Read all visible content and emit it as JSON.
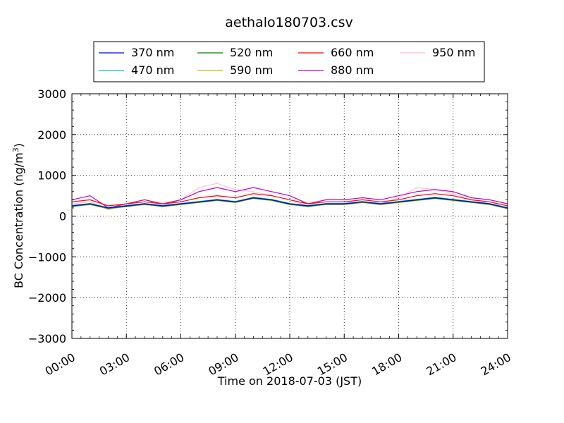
{
  "chart_data": {
    "type": "line",
    "title": "aethalo180703.csv",
    "xlabel": "Time on 2018-07-03 (JST)",
    "ylabel": "BC Concentration (ng/m³)",
    "ylabel_main": "BC Concentration (ng/m",
    "ylabel_sup": "3",
    "ylabel_tail": ")",
    "xlim": [
      "00:00",
      "24:00"
    ],
    "ylim": [
      -3000,
      3000
    ],
    "x_ticks": [
      "00:00",
      "03:00",
      "06:00",
      "09:00",
      "12:00",
      "15:00",
      "18:00",
      "21:00",
      "24:00"
    ],
    "y_ticks": [
      "3000",
      "2000",
      "1000",
      "0",
      "−1000",
      "−2000",
      "−3000"
    ],
    "grid": true,
    "legend_position": "top-center",
    "series": [
      {
        "name": "370 nm",
        "color": "#0000ff",
        "x": [
          "00:00",
          "01:00",
          "02:00",
          "03:00",
          "04:00",
          "05:00",
          "06:00",
          "07:00",
          "08:00",
          "09:00",
          "10:00",
          "11:00",
          "12:00",
          "13:00",
          "14:00",
          "15:00",
          "16:00",
          "17:00",
          "18:00",
          "19:00",
          "20:00",
          "21:00",
          "22:00",
          "23:00",
          "24:00"
        ],
        "values": [
          250,
          300,
          200,
          250,
          300,
          250,
          300,
          350,
          400,
          350,
          450,
          400,
          300,
          250,
          300,
          300,
          350,
          300,
          350,
          400,
          450,
          400,
          350,
          300,
          200
        ]
      },
      {
        "name": "470 nm",
        "color": "#00bfbf",
        "x": [
          "00:00",
          "01:00",
          "02:00",
          "03:00",
          "04:00",
          "05:00",
          "06:00",
          "07:00",
          "08:00",
          "09:00",
          "10:00",
          "11:00",
          "12:00",
          "13:00",
          "14:00",
          "15:00",
          "16:00",
          "17:00",
          "18:00",
          "19:00",
          "20:00",
          "21:00",
          "22:00",
          "23:00",
          "24:00"
        ],
        "values": [
          260,
          310,
          210,
          260,
          310,
          260,
          310,
          360,
          410,
          360,
          460,
          410,
          310,
          260,
          310,
          310,
          360,
          310,
          360,
          410,
          460,
          410,
          360,
          310,
          210
        ]
      },
      {
        "name": "520 nm",
        "color": "#008000",
        "x": [
          "00:00",
          "01:00",
          "02:00",
          "03:00",
          "04:00",
          "05:00",
          "06:00",
          "07:00",
          "08:00",
          "09:00",
          "10:00",
          "11:00",
          "12:00",
          "13:00",
          "14:00",
          "15:00",
          "16:00",
          "17:00",
          "18:00",
          "19:00",
          "20:00",
          "21:00",
          "22:00",
          "23:00",
          "24:00"
        ],
        "values": [
          240,
          290,
          190,
          240,
          290,
          240,
          290,
          340,
          390,
          340,
          440,
          390,
          290,
          240,
          290,
          290,
          340,
          290,
          340,
          390,
          440,
          390,
          340,
          290,
          190
        ]
      },
      {
        "name": "590 nm",
        "color": "#bfbf00",
        "x": [
          "00:00",
          "01:00",
          "02:00",
          "03:00",
          "04:00",
          "05:00",
          "06:00",
          "07:00",
          "08:00",
          "09:00",
          "10:00",
          "11:00",
          "12:00",
          "13:00",
          "14:00",
          "15:00",
          "16:00",
          "17:00",
          "18:00",
          "19:00",
          "20:00",
          "21:00",
          "22:00",
          "23:00",
          "24:00"
        ],
        "values": [
          230,
          280,
          180,
          230,
          280,
          230,
          280,
          330,
          380,
          330,
          430,
          380,
          280,
          230,
          280,
          280,
          330,
          280,
          330,
          380,
          430,
          380,
          330,
          280,
          180
        ]
      },
      {
        "name": "660 nm",
        "color": "#ff0000",
        "x": [
          "00:00",
          "01:00",
          "02:00",
          "03:00",
          "04:00",
          "05:00",
          "06:00",
          "07:00",
          "08:00",
          "09:00",
          "10:00",
          "11:00",
          "12:00",
          "13:00",
          "14:00",
          "15:00",
          "16:00",
          "17:00",
          "18:00",
          "19:00",
          "20:00",
          "21:00",
          "22:00",
          "23:00",
          "24:00"
        ],
        "values": [
          350,
          400,
          250,
          300,
          350,
          300,
          350,
          450,
          500,
          450,
          550,
          500,
          400,
          300,
          350,
          350,
          400,
          350,
          400,
          500,
          550,
          500,
          400,
          350,
          250
        ]
      },
      {
        "name": "880 nm",
        "color": "#bf00bf",
        "x": [
          "00:00",
          "01:00",
          "02:00",
          "03:00",
          "04:00",
          "05:00",
          "06:00",
          "07:00",
          "08:00",
          "09:00",
          "10:00",
          "11:00",
          "12:00",
          "13:00",
          "14:00",
          "15:00",
          "16:00",
          "17:00",
          "18:00",
          "19:00",
          "20:00",
          "21:00",
          "22:00",
          "23:00",
          "24:00"
        ],
        "values": [
          400,
          500,
          200,
          300,
          400,
          300,
          400,
          600,
          700,
          600,
          700,
          600,
          500,
          300,
          400,
          400,
          450,
          400,
          500,
          600,
          650,
          600,
          450,
          400,
          300
        ]
      },
      {
        "name": "950 nm",
        "color": "#ffc0cb",
        "x": [
          "00:00",
          "01:00",
          "02:00",
          "03:00",
          "04:00",
          "05:00",
          "06:00",
          "07:00",
          "08:00",
          "09:00",
          "10:00",
          "11:00",
          "12:00",
          "13:00",
          "14:00",
          "15:00",
          "16:00",
          "17:00",
          "18:00",
          "19:00",
          "20:00",
          "21:00",
          "22:00",
          "23:00",
          "24:00"
        ],
        "values": [
          300,
          350,
          150,
          250,
          300,
          250,
          400,
          700,
          800,
          650,
          600,
          500,
          400,
          250,
          300,
          300,
          350,
          300,
          450,
          700,
          650,
          550,
          400,
          300,
          200
        ]
      }
    ]
  }
}
